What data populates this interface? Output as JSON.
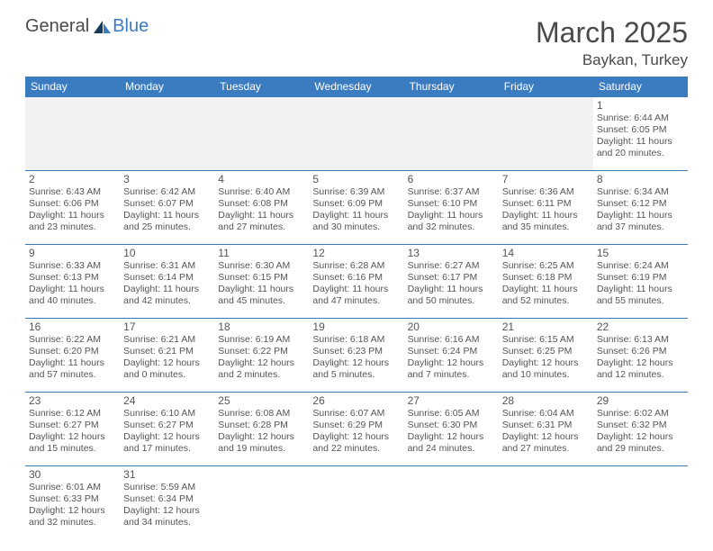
{
  "brand": {
    "part1": "General",
    "part2": "Blue"
  },
  "title": "March 2025",
  "location": "Baykan, Turkey",
  "colors": {
    "header_bg": "#3b7bbf",
    "header_text": "#ffffff",
    "border": "#3b7bbf",
    "text": "#555555",
    "blank_bg": "#f2f2f2"
  },
  "typography": {
    "title_fontsize": 32,
    "location_fontsize": 17,
    "dayheader_fontsize": 12,
    "daynum_fontsize": 12,
    "info_fontsize": 10.5
  },
  "layout": {
    "columns": 7,
    "rows": 6,
    "leading_blanks": 6
  },
  "day_headers": [
    "Sunday",
    "Monday",
    "Tuesday",
    "Wednesday",
    "Thursday",
    "Friday",
    "Saturday"
  ],
  "days": [
    {
      "n": "1",
      "sunrise": "6:44 AM",
      "sunset": "6:05 PM",
      "daylight": "11 hours and 20 minutes."
    },
    {
      "n": "2",
      "sunrise": "6:43 AM",
      "sunset": "6:06 PM",
      "daylight": "11 hours and 23 minutes."
    },
    {
      "n": "3",
      "sunrise": "6:42 AM",
      "sunset": "6:07 PM",
      "daylight": "11 hours and 25 minutes."
    },
    {
      "n": "4",
      "sunrise": "6:40 AM",
      "sunset": "6:08 PM",
      "daylight": "11 hours and 27 minutes."
    },
    {
      "n": "5",
      "sunrise": "6:39 AM",
      "sunset": "6:09 PM",
      "daylight": "11 hours and 30 minutes."
    },
    {
      "n": "6",
      "sunrise": "6:37 AM",
      "sunset": "6:10 PM",
      "daylight": "11 hours and 32 minutes."
    },
    {
      "n": "7",
      "sunrise": "6:36 AM",
      "sunset": "6:11 PM",
      "daylight": "11 hours and 35 minutes."
    },
    {
      "n": "8",
      "sunrise": "6:34 AM",
      "sunset": "6:12 PM",
      "daylight": "11 hours and 37 minutes."
    },
    {
      "n": "9",
      "sunrise": "6:33 AM",
      "sunset": "6:13 PM",
      "daylight": "11 hours and 40 minutes."
    },
    {
      "n": "10",
      "sunrise": "6:31 AM",
      "sunset": "6:14 PM",
      "daylight": "11 hours and 42 minutes."
    },
    {
      "n": "11",
      "sunrise": "6:30 AM",
      "sunset": "6:15 PM",
      "daylight": "11 hours and 45 minutes."
    },
    {
      "n": "12",
      "sunrise": "6:28 AM",
      "sunset": "6:16 PM",
      "daylight": "11 hours and 47 minutes."
    },
    {
      "n": "13",
      "sunrise": "6:27 AM",
      "sunset": "6:17 PM",
      "daylight": "11 hours and 50 minutes."
    },
    {
      "n": "14",
      "sunrise": "6:25 AM",
      "sunset": "6:18 PM",
      "daylight": "11 hours and 52 minutes."
    },
    {
      "n": "15",
      "sunrise": "6:24 AM",
      "sunset": "6:19 PM",
      "daylight": "11 hours and 55 minutes."
    },
    {
      "n": "16",
      "sunrise": "6:22 AM",
      "sunset": "6:20 PM",
      "daylight": "11 hours and 57 minutes."
    },
    {
      "n": "17",
      "sunrise": "6:21 AM",
      "sunset": "6:21 PM",
      "daylight": "12 hours and 0 minutes."
    },
    {
      "n": "18",
      "sunrise": "6:19 AM",
      "sunset": "6:22 PM",
      "daylight": "12 hours and 2 minutes."
    },
    {
      "n": "19",
      "sunrise": "6:18 AM",
      "sunset": "6:23 PM",
      "daylight": "12 hours and 5 minutes."
    },
    {
      "n": "20",
      "sunrise": "6:16 AM",
      "sunset": "6:24 PM",
      "daylight": "12 hours and 7 minutes."
    },
    {
      "n": "21",
      "sunrise": "6:15 AM",
      "sunset": "6:25 PM",
      "daylight": "12 hours and 10 minutes."
    },
    {
      "n": "22",
      "sunrise": "6:13 AM",
      "sunset": "6:26 PM",
      "daylight": "12 hours and 12 minutes."
    },
    {
      "n": "23",
      "sunrise": "6:12 AM",
      "sunset": "6:27 PM",
      "daylight": "12 hours and 15 minutes."
    },
    {
      "n": "24",
      "sunrise": "6:10 AM",
      "sunset": "6:27 PM",
      "daylight": "12 hours and 17 minutes."
    },
    {
      "n": "25",
      "sunrise": "6:08 AM",
      "sunset": "6:28 PM",
      "daylight": "12 hours and 19 minutes."
    },
    {
      "n": "26",
      "sunrise": "6:07 AM",
      "sunset": "6:29 PM",
      "daylight": "12 hours and 22 minutes."
    },
    {
      "n": "27",
      "sunrise": "6:05 AM",
      "sunset": "6:30 PM",
      "daylight": "12 hours and 24 minutes."
    },
    {
      "n": "28",
      "sunrise": "6:04 AM",
      "sunset": "6:31 PM",
      "daylight": "12 hours and 27 minutes."
    },
    {
      "n": "29",
      "sunrise": "6:02 AM",
      "sunset": "6:32 PM",
      "daylight": "12 hours and 29 minutes."
    },
    {
      "n": "30",
      "sunrise": "6:01 AM",
      "sunset": "6:33 PM",
      "daylight": "12 hours and 32 minutes."
    },
    {
      "n": "31",
      "sunrise": "5:59 AM",
      "sunset": "6:34 PM",
      "daylight": "12 hours and 34 minutes."
    }
  ],
  "labels": {
    "sunrise": "Sunrise: ",
    "sunset": "Sunset: ",
    "daylight": "Daylight: "
  }
}
